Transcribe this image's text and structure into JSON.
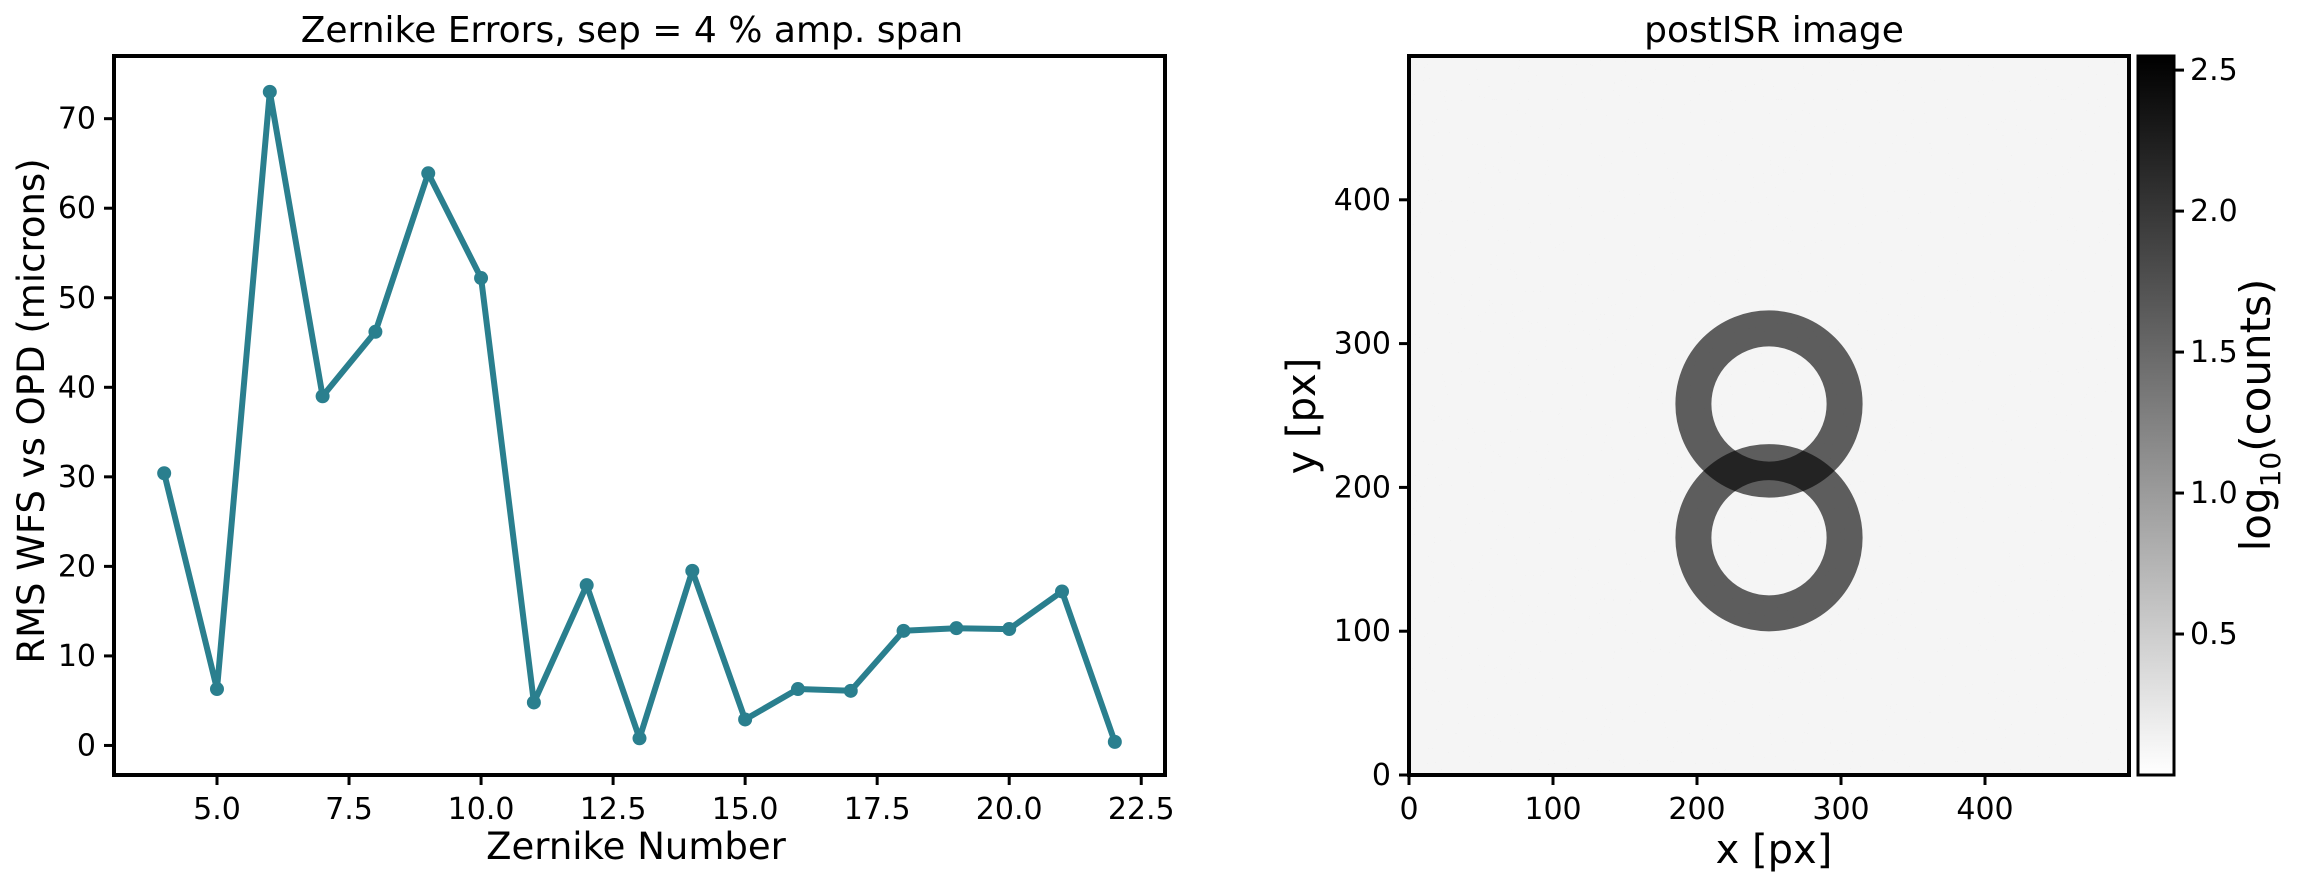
{
  "chart_data": [
    {
      "type": "line",
      "title": "Zernike Errors, sep = 4 % amp. span",
      "xlabel": "Zernike Number",
      "ylabel": "RMS WFS vs OPD (microns)",
      "xlim": [
        3.05,
        22.95
      ],
      "ylim": [
        -3.3,
        77.0
      ],
      "xticks": [
        5.0,
        7.5,
        10.0,
        12.5,
        15.0,
        17.5,
        20.0,
        22.5
      ],
      "xtick_labels": [
        "5.0",
        "7.5",
        "10.0",
        "12.5",
        "15.0",
        "17.5",
        "20.0",
        "22.5"
      ],
      "yticks": [
        0,
        10,
        20,
        30,
        40,
        50,
        60,
        70
      ],
      "ytick_labels": [
        "0",
        "10",
        "20",
        "30",
        "40",
        "50",
        "60",
        "70"
      ],
      "grid": false,
      "series": [
        {
          "color": "#2a7f8e",
          "marker": "circle",
          "x": [
            4,
            5,
            6,
            7,
            8,
            9,
            10,
            11,
            12,
            13,
            14,
            15,
            16,
            17,
            18,
            19,
            20,
            21,
            22
          ],
          "values": [
            30.4,
            6.3,
            73.0,
            39.0,
            46.2,
            63.9,
            52.2,
            4.8,
            17.9,
            0.8,
            19.5,
            2.9,
            6.3,
            6.1,
            12.8,
            13.1,
            13.0,
            17.2,
            0.4
          ]
        }
      ]
    },
    {
      "type": "heatmap",
      "title": "postISR image",
      "xlabel": "x [px]",
      "ylabel": "y [px]",
      "xlim": [
        0,
        500
      ],
      "ylim": [
        0,
        500
      ],
      "xticks": [
        0,
        100,
        200,
        300,
        400
      ],
      "xtick_labels": [
        "0",
        "100",
        "200",
        "300",
        "400"
      ],
      "yticks": [
        0,
        100,
        200,
        300,
        400
      ],
      "ytick_labels": [
        "0",
        "100",
        "200",
        "300",
        "400"
      ],
      "colormap": "gray_r",
      "colorbar": {
        "label": "log",
        "label_sub": "10",
        "label_rest": "(counts)",
        "range": [
          0.0,
          2.55
        ],
        "ticks": [
          0.5,
          1.0,
          1.5,
          2.0,
          2.5
        ],
        "tick_labels": [
          "0.5",
          "1.0",
          "1.5",
          "2.0",
          "2.5"
        ]
      },
      "features": [
        {
          "shape": "donut",
          "cx": 250,
          "cy": 258,
          "r_outer": 65,
          "r_inner": 40
        },
        {
          "shape": "donut",
          "cx": 250,
          "cy": 165,
          "r_outer": 65,
          "r_inner": 40
        }
      ]
    }
  ]
}
